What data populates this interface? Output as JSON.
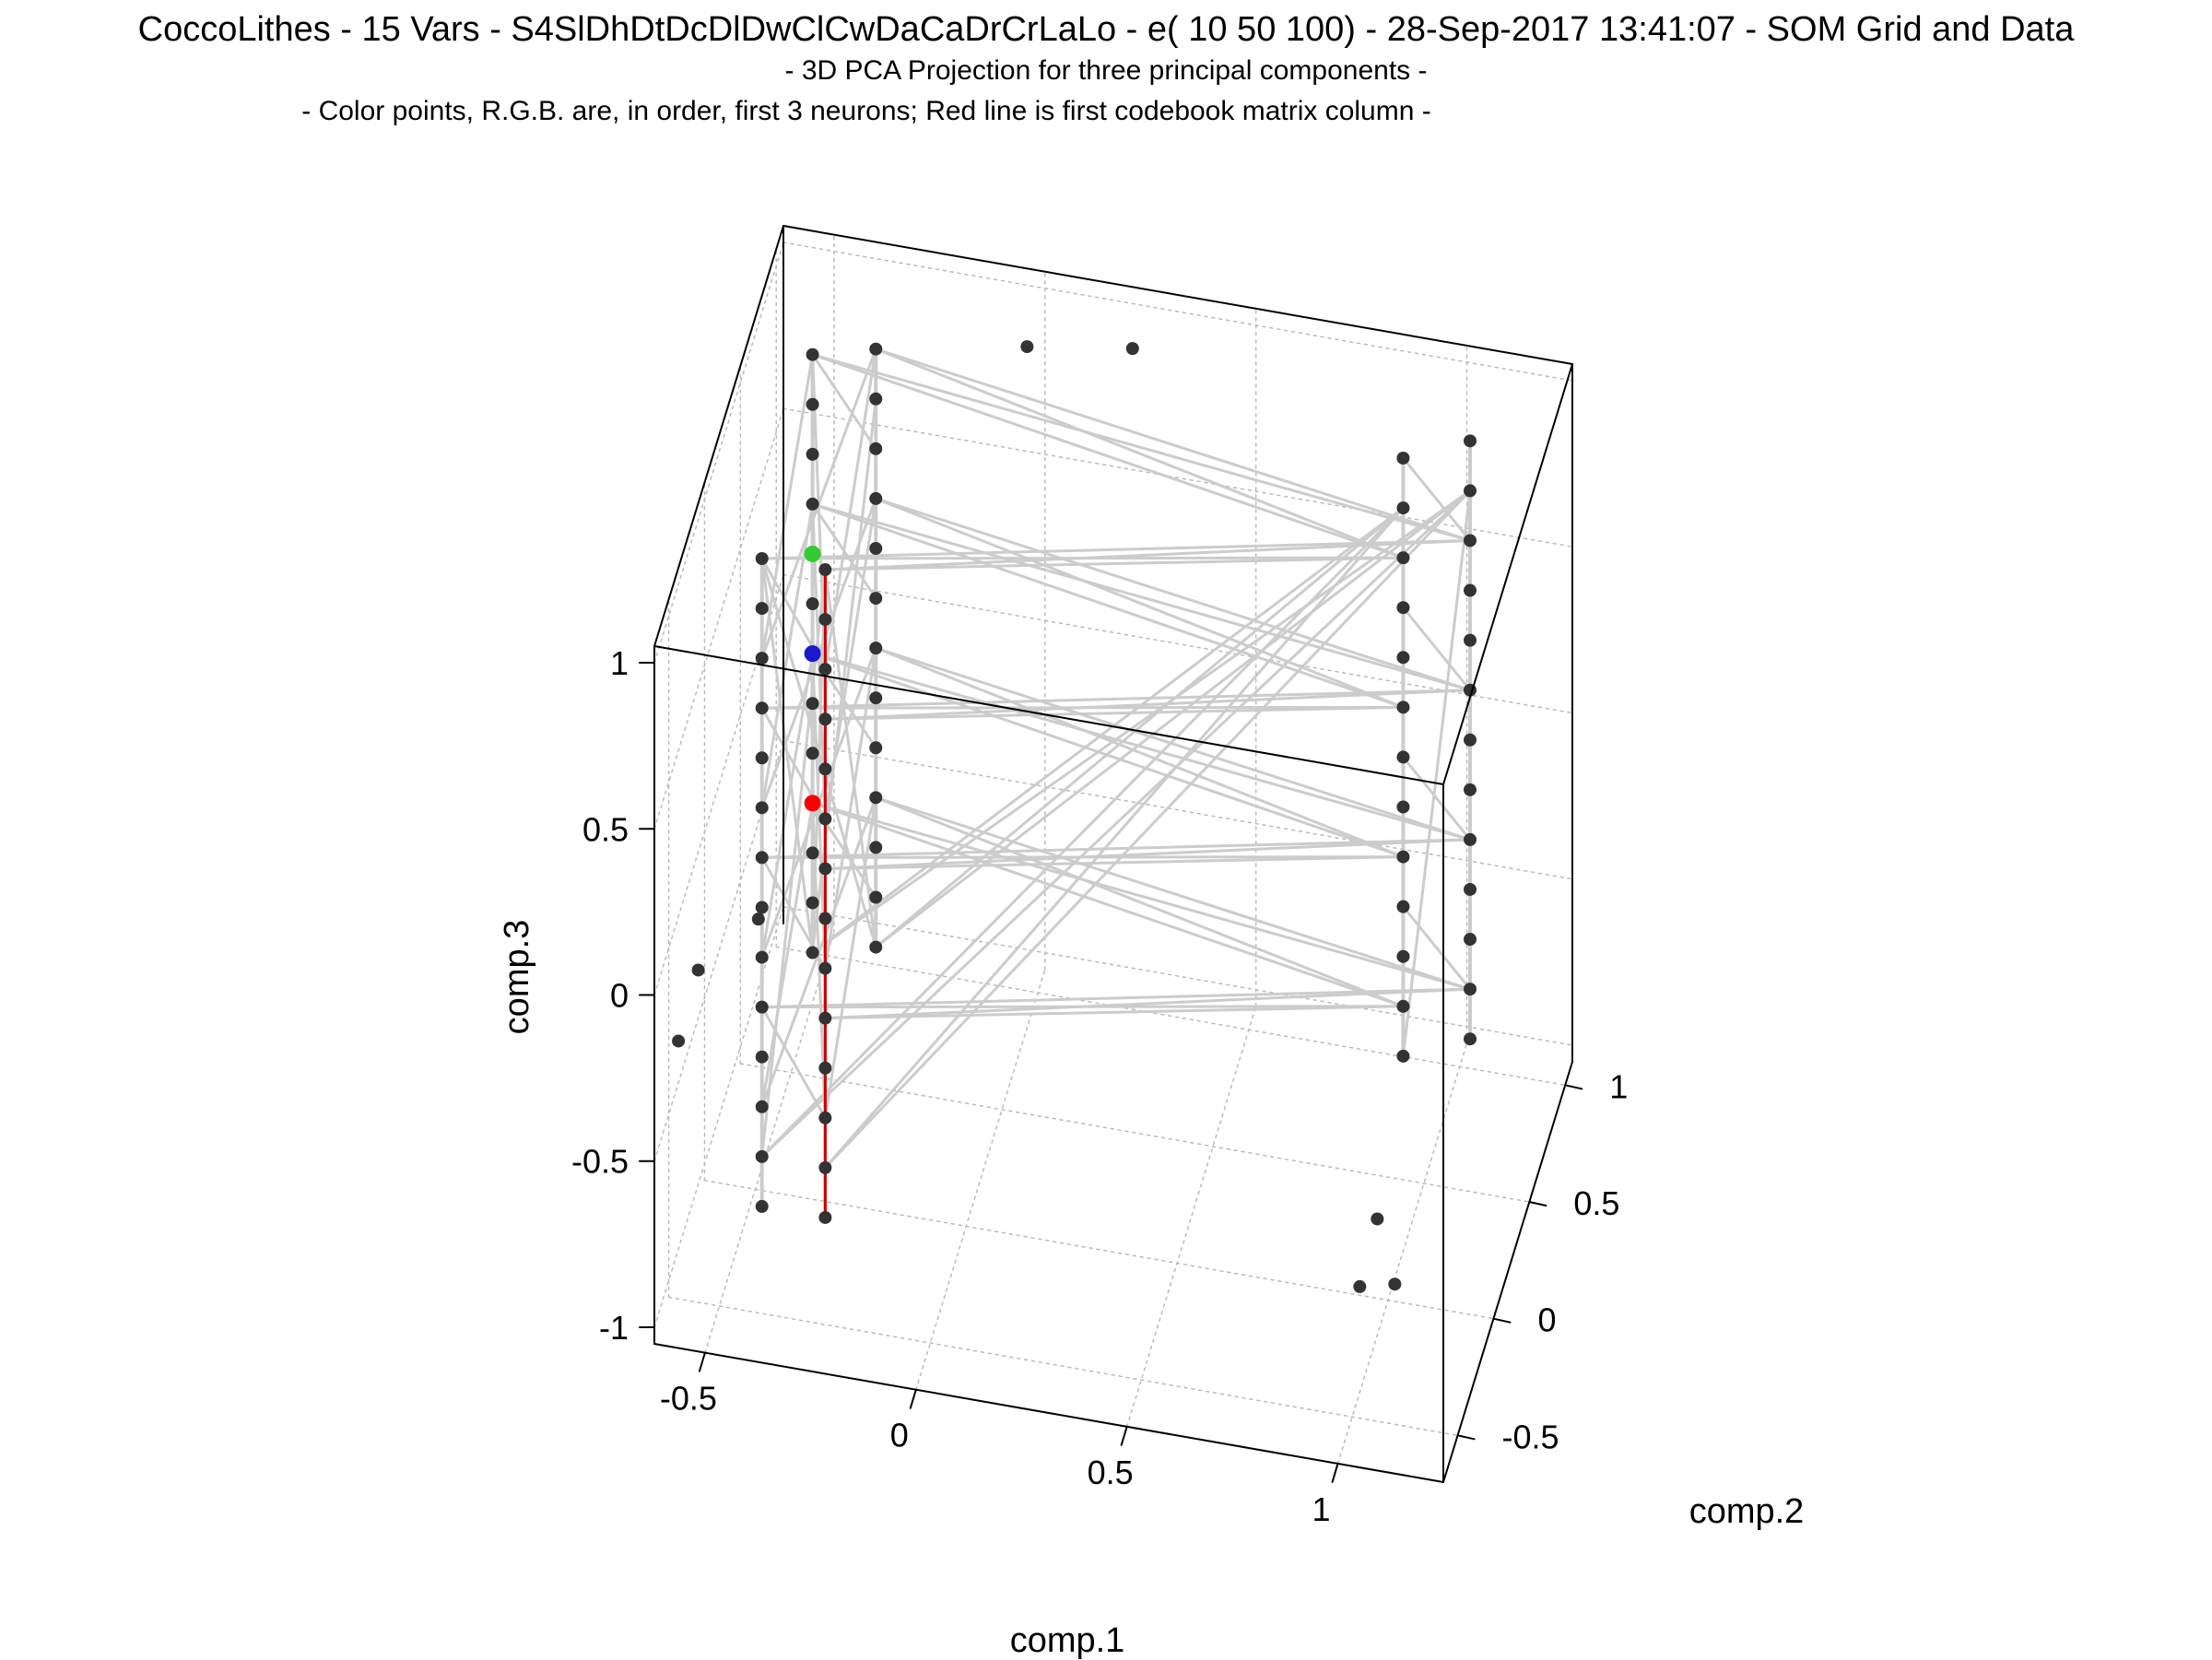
{
  "chart_data": {
    "type": "scatter",
    "projection": "3d",
    "title": "CoccoLithes - 15 Vars - S4SlDhDtDcDlDwClCwDaCaDrCrLaLo - e( 10 50 100) - 28-Sep-2017 13:41:07 - SOM Grid and Data",
    "subtitle": "- 3D PCA Projection for three principal components -",
    "subtitle2": "- Color points, R.G.B. are, in order, first 3 neurons; Red line is first codebook matrix column -",
    "xlabel": "comp.1",
    "ylabel": "comp.2",
    "zlabel": "comp.3",
    "xlim": [
      -0.62,
      1.25
    ],
    "ylim": [
      -0.7,
      1.1
    ],
    "zlim": [
      -1.05,
      1.05
    ],
    "x_ticks": [
      "-0.5",
      "0",
      "0.5",
      "1"
    ],
    "y_ticks": [
      "-0.5",
      "0",
      "0.5",
      "1"
    ],
    "z_ticks": [
      "-1",
      "-0.5",
      "0",
      "0.5",
      "1"
    ],
    "grid": true,
    "colors": {
      "data_points": "#333333",
      "som_grid": "#cccccc",
      "codebook_line": "#cc0000",
      "neuron_1": "#ff0000",
      "neuron_2": "#33cc33",
      "neuron_3": "#1a1acc"
    },
    "series": [
      {
        "name": "Data",
        "points": [
          [
            -0.5,
            0.8,
            0.9
          ],
          [
            -0.5,
            0.8,
            0.75
          ],
          [
            -0.5,
            0.8,
            0.6
          ],
          [
            -0.5,
            0.8,
            0.45
          ],
          [
            -0.5,
            0.8,
            0.3
          ],
          [
            -0.5,
            0.8,
            0.15
          ],
          [
            -0.5,
            0.8,
            0.0
          ],
          [
            -0.5,
            0.8,
            -0.15
          ],
          [
            -0.5,
            0.8,
            -0.3
          ],
          [
            -0.5,
            0.8,
            -0.45
          ],
          [
            -0.5,
            0.8,
            -0.6
          ],
          [
            -0.5,
            0.8,
            -0.75
          ],
          [
            -0.5,
            0.8,
            -0.9
          ],
          [
            -0.35,
            0.8,
            0.95
          ],
          [
            -0.35,
            0.8,
            0.8
          ],
          [
            -0.35,
            0.8,
            0.65
          ],
          [
            -0.35,
            0.8,
            0.5
          ],
          [
            -0.35,
            0.8,
            0.35
          ],
          [
            -0.35,
            0.8,
            0.2
          ],
          [
            -0.35,
            0.8,
            0.05
          ],
          [
            -0.35,
            0.8,
            -0.1
          ],
          [
            -0.35,
            0.8,
            -0.25
          ],
          [
            -0.35,
            0.8,
            -0.4
          ],
          [
            -0.35,
            0.8,
            -0.55
          ],
          [
            -0.35,
            0.8,
            -0.7
          ],
          [
            -0.35,
            0.8,
            -0.85
          ],
          [
            -0.45,
            -0.2,
            1.0
          ],
          [
            -0.45,
            -0.2,
            0.85
          ],
          [
            -0.45,
            -0.2,
            0.7
          ],
          [
            -0.45,
            -0.2,
            0.55
          ],
          [
            -0.45,
            -0.2,
            0.4
          ],
          [
            -0.45,
            -0.2,
            0.25
          ],
          [
            -0.45,
            -0.2,
            0.1
          ],
          [
            -0.45,
            -0.2,
            -0.05
          ],
          [
            -0.45,
            -0.2,
            -0.2
          ],
          [
            -0.45,
            -0.2,
            -0.35
          ],
          [
            -0.45,
            -0.2,
            -0.5
          ],
          [
            -0.45,
            -0.2,
            -0.65
          ],
          [
            -0.45,
            -0.2,
            -0.8
          ],
          [
            -0.45,
            -0.2,
            -0.95
          ],
          [
            -0.3,
            -0.2,
            1.0
          ],
          [
            -0.3,
            -0.2,
            0.85
          ],
          [
            -0.3,
            -0.2,
            0.7
          ],
          [
            -0.3,
            -0.2,
            0.55
          ],
          [
            -0.3,
            -0.2,
            0.4
          ],
          [
            -0.3,
            -0.2,
            0.25
          ],
          [
            -0.3,
            -0.2,
            0.1
          ],
          [
            -0.3,
            -0.2,
            -0.05
          ],
          [
            -0.3,
            -0.2,
            -0.2
          ],
          [
            -0.3,
            -0.2,
            -0.35
          ],
          [
            -0.3,
            -0.2,
            -0.5
          ],
          [
            -0.3,
            -0.2,
            -0.65
          ],
          [
            -0.3,
            -0.2,
            -0.8
          ],
          [
            -0.3,
            -0.2,
            -0.95
          ],
          [
            0.9,
            0.8,
            0.9
          ],
          [
            0.9,
            0.8,
            0.75
          ],
          [
            0.9,
            0.8,
            0.6
          ],
          [
            0.9,
            0.8,
            0.45
          ],
          [
            0.9,
            0.8,
            0.3
          ],
          [
            0.9,
            0.8,
            0.15
          ],
          [
            0.9,
            0.8,
            0.0
          ],
          [
            0.9,
            0.8,
            -0.15
          ],
          [
            0.9,
            0.8,
            -0.3
          ],
          [
            0.9,
            0.8,
            -0.45
          ],
          [
            0.9,
            0.8,
            -0.6
          ],
          [
            0.9,
            0.8,
            -0.75
          ],
          [
            0.9,
            0.8,
            -0.9
          ],
          [
            1.05,
            0.85,
            0.95
          ],
          [
            1.05,
            0.85,
            0.8
          ],
          [
            1.05,
            0.85,
            0.65
          ],
          [
            1.05,
            0.85,
            0.5
          ],
          [
            1.05,
            0.85,
            0.35
          ],
          [
            1.05,
            0.85,
            0.2
          ],
          [
            1.05,
            0.85,
            0.05
          ],
          [
            1.05,
            0.85,
            -0.1
          ],
          [
            1.05,
            0.85,
            -0.25
          ],
          [
            1.05,
            0.85,
            -0.4
          ],
          [
            1.05,
            0.85,
            -0.55
          ],
          [
            1.05,
            0.85,
            -0.7
          ],
          [
            1.05,
            0.85,
            -0.85
          ],
          [
            1.05,
            -0.2,
            -0.85
          ],
          [
            1.0,
            -0.15,
            -0.7
          ],
          [
            0.95,
            -0.1,
            -0.95
          ],
          [
            -0.45,
            -0.25,
            -0.05
          ],
          [
            -0.55,
            -0.5,
            -0.05
          ],
          [
            -0.58,
            -0.6,
            -0.2
          ],
          [
            0.25,
            0.85,
            1.05
          ],
          [
            0.0,
            0.85,
            1.0
          ]
        ]
      },
      {
        "name": "SOM Grid",
        "points": []
      }
    ]
  }
}
